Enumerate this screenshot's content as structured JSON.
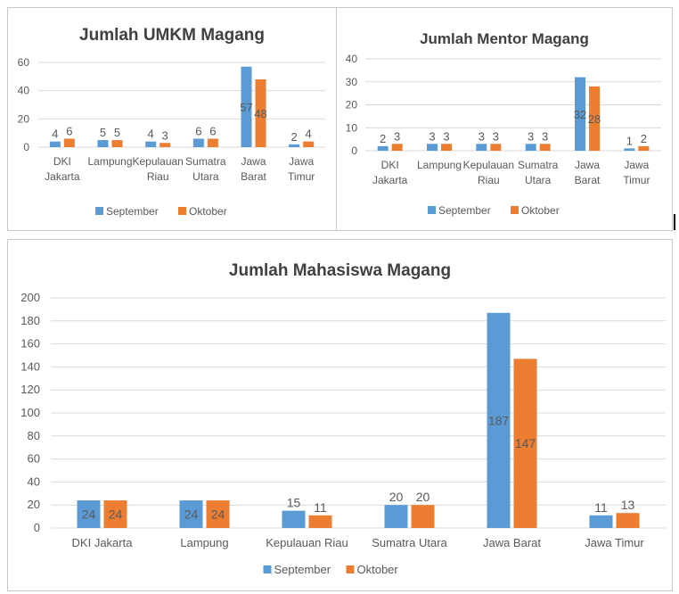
{
  "colors": {
    "September": "#5b9bd5",
    "Oktober": "#ed7d31",
    "text": "#595959",
    "grid": "#d9d9d9",
    "title": "#404040"
  },
  "chart_data": [
    {
      "type": "bar",
      "title": "Jumlah UMKM Magang",
      "categories": [
        "DKI Jakarta",
        "Lampung",
        "Kepulauan Riau",
        "Sumatra Utara",
        "Jawa Barat",
        "Jawa Timur"
      ],
      "series": [
        {
          "name": "September",
          "values": [
            4,
            5,
            4,
            6,
            57,
            2
          ]
        },
        {
          "name": "Oktober",
          "values": [
            6,
            5,
            3,
            6,
            48,
            4
          ]
        }
      ],
      "ylim": [
        0,
        60
      ],
      "yticks": [
        0,
        20,
        40,
        60
      ],
      "grid": true,
      "legend": "bottom"
    },
    {
      "type": "bar",
      "title": "Jumlah Mentor Magang",
      "categories": [
        "DKI Jakarta",
        "Lampung",
        "Kepulauan Riau",
        "Sumatra Utara",
        "Jawa Barat",
        "Jawa Timur"
      ],
      "series": [
        {
          "name": "September",
          "values": [
            2,
            3,
            3,
            3,
            32,
            1
          ]
        },
        {
          "name": "Oktober",
          "values": [
            3,
            3,
            3,
            3,
            28,
            2
          ]
        }
      ],
      "ylim": [
        0,
        40
      ],
      "yticks": [
        0,
        10,
        20,
        30,
        40
      ],
      "grid": true,
      "legend": "bottom"
    },
    {
      "type": "bar",
      "title": "Jumlah Mahasiswa Magang",
      "categories": [
        "DKI Jakarta",
        "Lampung",
        "Kepulauan Riau",
        "Sumatra Utara",
        "Jawa Barat",
        "Jawa Timur"
      ],
      "series": [
        {
          "name": "September",
          "values": [
            24,
            24,
            15,
            20,
            187,
            11
          ]
        },
        {
          "name": "Oktober",
          "values": [
            24,
            24,
            11,
            20,
            147,
            13
          ]
        }
      ],
      "ylim": [
        0,
        200
      ],
      "yticks": [
        0,
        20,
        40,
        60,
        80,
        100,
        120,
        140,
        160,
        180,
        200
      ],
      "grid": true,
      "legend": "bottom"
    }
  ]
}
